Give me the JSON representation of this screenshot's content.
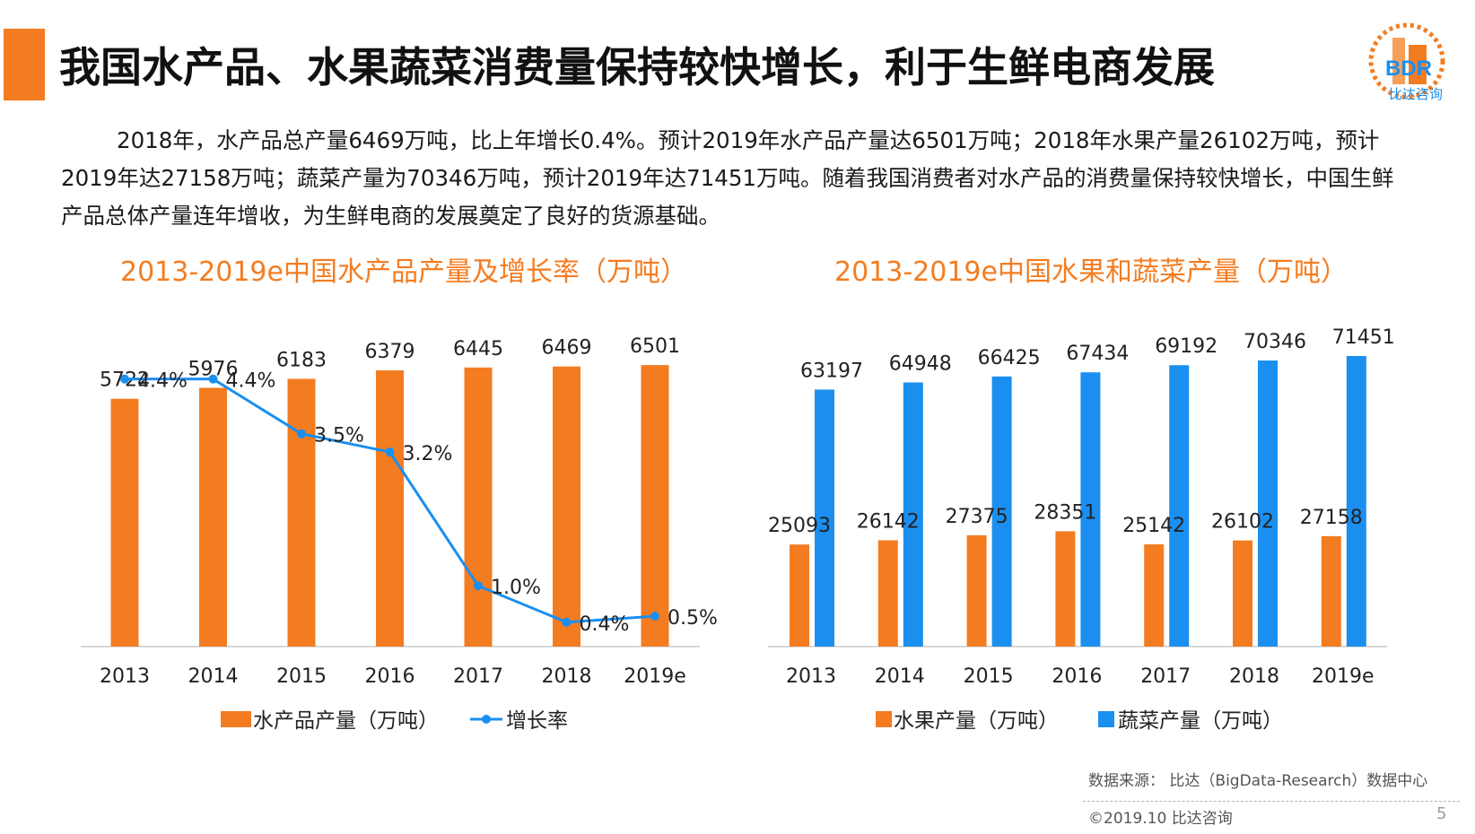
{
  "title": "我国水产品、水果蔬菜消费量保持较快增长，利于生鲜电商发展",
  "logo": {
    "abbr": "BDR",
    "name": "比达咨询"
  },
  "intro": "2018年，水产品总产量6469万吨，比上年增长0.4%。预计2019年水产品产量达6501万吨；2018年水果产量26102万吨，预计2019年达27158万吨；蔬菜产量为70346万吨，预计2019年达71451万吨。随着我国消费者对水产品的消费量保持较快增长，中国生鲜产品总体产量连年增收，为生鲜电商的发展奠定了良好的货源基础。",
  "colors": {
    "orange": "#f47c20",
    "blue": "#1a8ff0",
    "growth_line": "#1a8ff0"
  },
  "chart_data": [
    {
      "type": "bar",
      "title": "2013-2019e中国水产品产量及增长率（万吨）",
      "categories": [
        "2013",
        "2014",
        "2015",
        "2016",
        "2017",
        "2018",
        "2019e"
      ],
      "series": [
        {
          "name": "水产品产量（万吨）",
          "kind": "bar",
          "values": [
            5722,
            5976,
            6183,
            6379,
            6445,
            6469,
            6501
          ],
          "labels": [
            "5722",
            "5976",
            "6183",
            "6379",
            "6445",
            "6469",
            "6501"
          ]
        },
        {
          "name": "增长率",
          "kind": "line",
          "values": [
            4.4,
            4.4,
            3.5,
            3.2,
            1.0,
            0.4,
            0.5
          ],
          "labels": [
            "4.4%",
            "4.4%",
            "3.5%",
            "3.2%",
            "1.0%",
            "0.4%",
            "0.5%"
          ]
        }
      ],
      "ylim": [
        0,
        7000
      ],
      "y2lim": [
        0,
        5
      ],
      "legend": "bottom"
    },
    {
      "type": "bar",
      "title": "2013-2019e中国水果和蔬菜产量（万吨）",
      "categories": [
        "2013",
        "2014",
        "2015",
        "2016",
        "2017",
        "2018",
        "2019e"
      ],
      "series": [
        {
          "name": "水果产量（万吨）",
          "kind": "bar",
          "values": [
            25093,
            26142,
            27375,
            28351,
            25142,
            26102,
            27158
          ],
          "labels": [
            "25093",
            "26142",
            "27375",
            "28351",
            "25142",
            "26102",
            "27158"
          ]
        },
        {
          "name": "蔬菜产量（万吨）",
          "kind": "bar",
          "values": [
            63197,
            64948,
            66425,
            67434,
            69192,
            70346,
            71451
          ],
          "labels": [
            "63197",
            "64948",
            "66425",
            "67434",
            "69192",
            "70346",
            "71451"
          ]
        }
      ],
      "ylim": [
        0,
        80000
      ],
      "legend": "bottom"
    }
  ],
  "source": "数据来源： 比达（BigData-Research）数据中心",
  "copyright": "©2019.10  比达咨询",
  "page_number": "5"
}
